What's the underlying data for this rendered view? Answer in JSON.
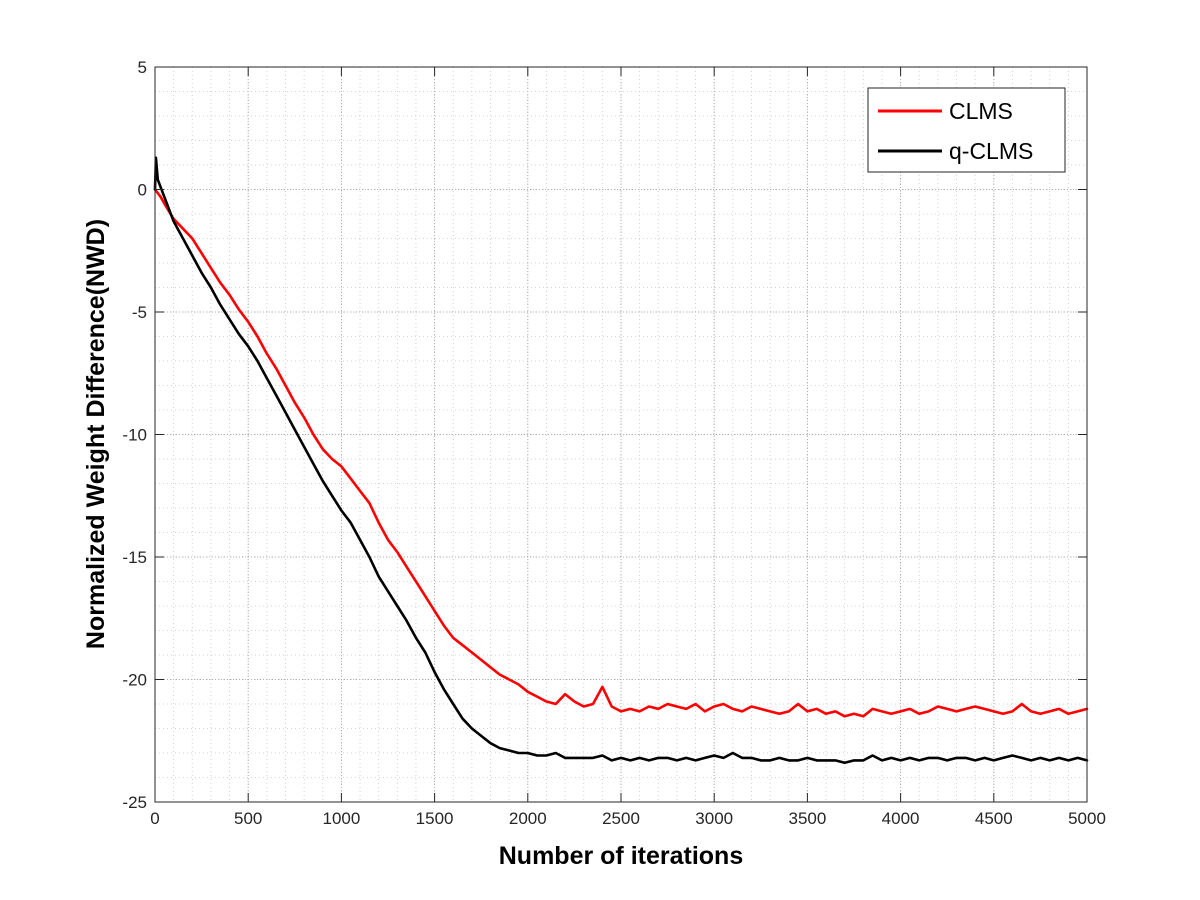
{
  "chart_data": {
    "type": "line",
    "title": "",
    "xlabel": "Number of iterations",
    "ylabel": "Normalized Weight Difference(NWD)",
    "xlim": [
      0,
      5000
    ],
    "ylim": [
      -25,
      5
    ],
    "xticks": [
      0,
      500,
      1000,
      1500,
      2000,
      2500,
      3000,
      3500,
      4000,
      4500,
      5000
    ],
    "yticks": [
      5,
      0,
      -5,
      -10,
      -15,
      -20,
      -25
    ],
    "xtick_labels": [
      "0",
      "500",
      "1000",
      "1500",
      "2000",
      "2500",
      "3000",
      "3500",
      "4000",
      "4500",
      "5000"
    ],
    "ytick_labels": [
      "5",
      "0",
      "-5",
      "-10",
      "-15",
      "-20",
      "-25"
    ],
    "grid": true,
    "legend_position": "top-right",
    "series": [
      {
        "name": "CLMS",
        "color": "#ff0000",
        "x": [
          0,
          30,
          60,
          100,
          150,
          200,
          250,
          300,
          350,
          400,
          450,
          500,
          550,
          600,
          650,
          700,
          750,
          800,
          850,
          900,
          950,
          1000,
          1050,
          1100,
          1150,
          1200,
          1250,
          1300,
          1350,
          1400,
          1450,
          1500,
          1550,
          1600,
          1650,
          1700,
          1750,
          1800,
          1850,
          1900,
          1950,
          2000,
          2050,
          2100,
          2150,
          2200,
          2250,
          2300,
          2350,
          2400,
          2450,
          2500,
          2550,
          2600,
          2650,
          2700,
          2750,
          2800,
          2850,
          2900,
          2950,
          3000,
          3050,
          3100,
          3150,
          3200,
          3250,
          3300,
          3350,
          3400,
          3450,
          3500,
          3550,
          3600,
          3650,
          3700,
          3750,
          3800,
          3850,
          3900,
          3950,
          4000,
          4050,
          4100,
          4150,
          4200,
          4250,
          4300,
          4350,
          4400,
          4450,
          4500,
          4550,
          4600,
          4650,
          4700,
          4750,
          4800,
          4850,
          4900,
          4950,
          5000
        ],
        "values": [
          0.0,
          -0.3,
          -0.7,
          -1.2,
          -1.6,
          -2.0,
          -2.6,
          -3.2,
          -3.8,
          -4.3,
          -4.9,
          -5.4,
          -6.0,
          -6.7,
          -7.3,
          -8.0,
          -8.7,
          -9.3,
          -10.0,
          -10.6,
          -11.0,
          -11.3,
          -11.8,
          -12.3,
          -12.8,
          -13.6,
          -14.3,
          -14.8,
          -15.4,
          -16.0,
          -16.6,
          -17.2,
          -17.8,
          -18.3,
          -18.6,
          -18.9,
          -19.2,
          -19.5,
          -19.8,
          -20.0,
          -20.2,
          -20.5,
          -20.7,
          -20.9,
          -21.0,
          -20.6,
          -20.9,
          -21.1,
          -21.0,
          -20.3,
          -21.1,
          -21.3,
          -21.2,
          -21.3,
          -21.1,
          -21.2,
          -21.0,
          -21.1,
          -21.2,
          -21.0,
          -21.3,
          -21.1,
          -21.0,
          -21.2,
          -21.3,
          -21.1,
          -21.2,
          -21.3,
          -21.4,
          -21.3,
          -21.0,
          -21.3,
          -21.2,
          -21.4,
          -21.3,
          -21.5,
          -21.4,
          -21.5,
          -21.2,
          -21.3,
          -21.4,
          -21.3,
          -21.2,
          -21.4,
          -21.3,
          -21.1,
          -21.2,
          -21.3,
          -21.2,
          -21.1,
          -21.2,
          -21.3,
          -21.4,
          -21.3,
          -21.0,
          -21.3,
          -21.4,
          -21.3,
          -21.2,
          -21.4,
          -21.3,
          -21.2
        ]
      },
      {
        "name": "q-CLMS",
        "color": "#000000",
        "x": [
          0,
          5,
          15,
          30,
          60,
          100,
          150,
          200,
          250,
          300,
          350,
          400,
          450,
          500,
          550,
          600,
          650,
          700,
          750,
          800,
          850,
          900,
          950,
          1000,
          1050,
          1100,
          1150,
          1200,
          1250,
          1300,
          1350,
          1400,
          1450,
          1500,
          1550,
          1600,
          1650,
          1700,
          1750,
          1800,
          1850,
          1900,
          1950,
          2000,
          2050,
          2100,
          2150,
          2200,
          2250,
          2300,
          2350,
          2400,
          2450,
          2500,
          2550,
          2600,
          2650,
          2700,
          2750,
          2800,
          2850,
          2900,
          2950,
          3000,
          3050,
          3100,
          3150,
          3200,
          3250,
          3300,
          3350,
          3400,
          3450,
          3500,
          3550,
          3600,
          3650,
          3700,
          3750,
          3800,
          3850,
          3900,
          3950,
          4000,
          4050,
          4100,
          4150,
          4200,
          4250,
          4300,
          4350,
          4400,
          4450,
          4500,
          4550,
          4600,
          4650,
          4700,
          4750,
          4800,
          4850,
          4900,
          4950,
          5000
        ],
        "values": [
          0.0,
          1.3,
          0.4,
          0.1,
          -0.5,
          -1.3,
          -2.0,
          -2.7,
          -3.4,
          -4.0,
          -4.7,
          -5.3,
          -5.9,
          -6.4,
          -7.0,
          -7.7,
          -8.4,
          -9.1,
          -9.8,
          -10.5,
          -11.2,
          -11.9,
          -12.5,
          -13.1,
          -13.6,
          -14.3,
          -15.0,
          -15.8,
          -16.4,
          -17.0,
          -17.6,
          -18.3,
          -18.9,
          -19.7,
          -20.4,
          -21.0,
          -21.6,
          -22.0,
          -22.3,
          -22.6,
          -22.8,
          -22.9,
          -23.0,
          -23.0,
          -23.1,
          -23.1,
          -23.0,
          -23.2,
          -23.2,
          -23.2,
          -23.2,
          -23.1,
          -23.3,
          -23.2,
          -23.3,
          -23.2,
          -23.3,
          -23.2,
          -23.2,
          -23.3,
          -23.2,
          -23.3,
          -23.2,
          -23.1,
          -23.2,
          -23.0,
          -23.2,
          -23.2,
          -23.3,
          -23.3,
          -23.2,
          -23.3,
          -23.3,
          -23.2,
          -23.3,
          -23.3,
          -23.3,
          -23.4,
          -23.3,
          -23.3,
          -23.1,
          -23.3,
          -23.2,
          -23.3,
          -23.2,
          -23.3,
          -23.2,
          -23.2,
          -23.3,
          -23.2,
          -23.2,
          -23.3,
          -23.2,
          -23.3,
          -23.2,
          -23.1,
          -23.2,
          -23.3,
          -23.2,
          -23.3,
          -23.2,
          -23.3,
          -23.2,
          -23.3
        ]
      }
    ]
  }
}
